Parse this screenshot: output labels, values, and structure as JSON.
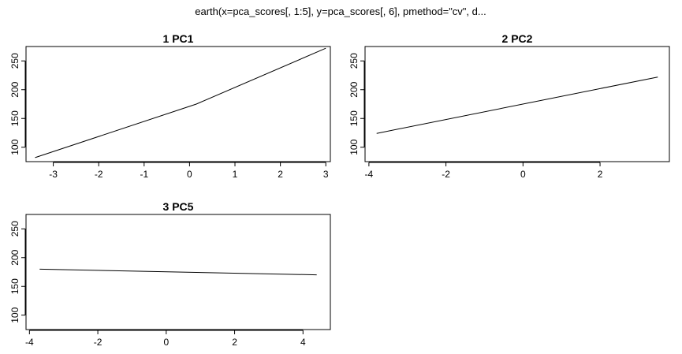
{
  "figure": {
    "title": "earth(x=pca_scores[, 1:5], y=pca_scores[, 6], pmethod=\"cv\", d..."
  },
  "chart_data": [
    {
      "type": "line",
      "title": "1  PC1",
      "xlabel": "",
      "ylabel": "",
      "xlim": [
        -3.6,
        3.1
      ],
      "ylim": [
        75,
        275
      ],
      "xticks": [
        -3,
        -2,
        -1,
        0,
        1,
        2,
        3
      ],
      "yticks": [
        100,
        150,
        200,
        250
      ],
      "grid": false,
      "series": [
        {
          "x": [
            -3.4,
            0.15,
            3.0
          ],
          "y": [
            82,
            175,
            272
          ]
        }
      ]
    },
    {
      "type": "line",
      "title": "2  PC2",
      "xlabel": "",
      "ylabel": "",
      "xlim": [
        -4.1,
        3.8
      ],
      "ylim": [
        75,
        275
      ],
      "xticks": [
        -4,
        -2,
        0,
        2
      ],
      "yticks": [
        100,
        150,
        200,
        250
      ],
      "grid": false,
      "series": [
        {
          "x": [
            -3.8,
            3.5
          ],
          "y": [
            124,
            222
          ]
        }
      ]
    },
    {
      "type": "line",
      "title": "3  PC5",
      "xlabel": "",
      "ylabel": "",
      "xlim": [
        -4.1,
        4.8
      ],
      "ylim": [
        75,
        275
      ],
      "xticks": [
        -4,
        -2,
        0,
        2,
        4
      ],
      "yticks": [
        100,
        150,
        200,
        250
      ],
      "grid": false,
      "series": [
        {
          "x": [
            -3.7,
            4.4
          ],
          "y": [
            180,
            170
          ]
        }
      ]
    }
  ]
}
